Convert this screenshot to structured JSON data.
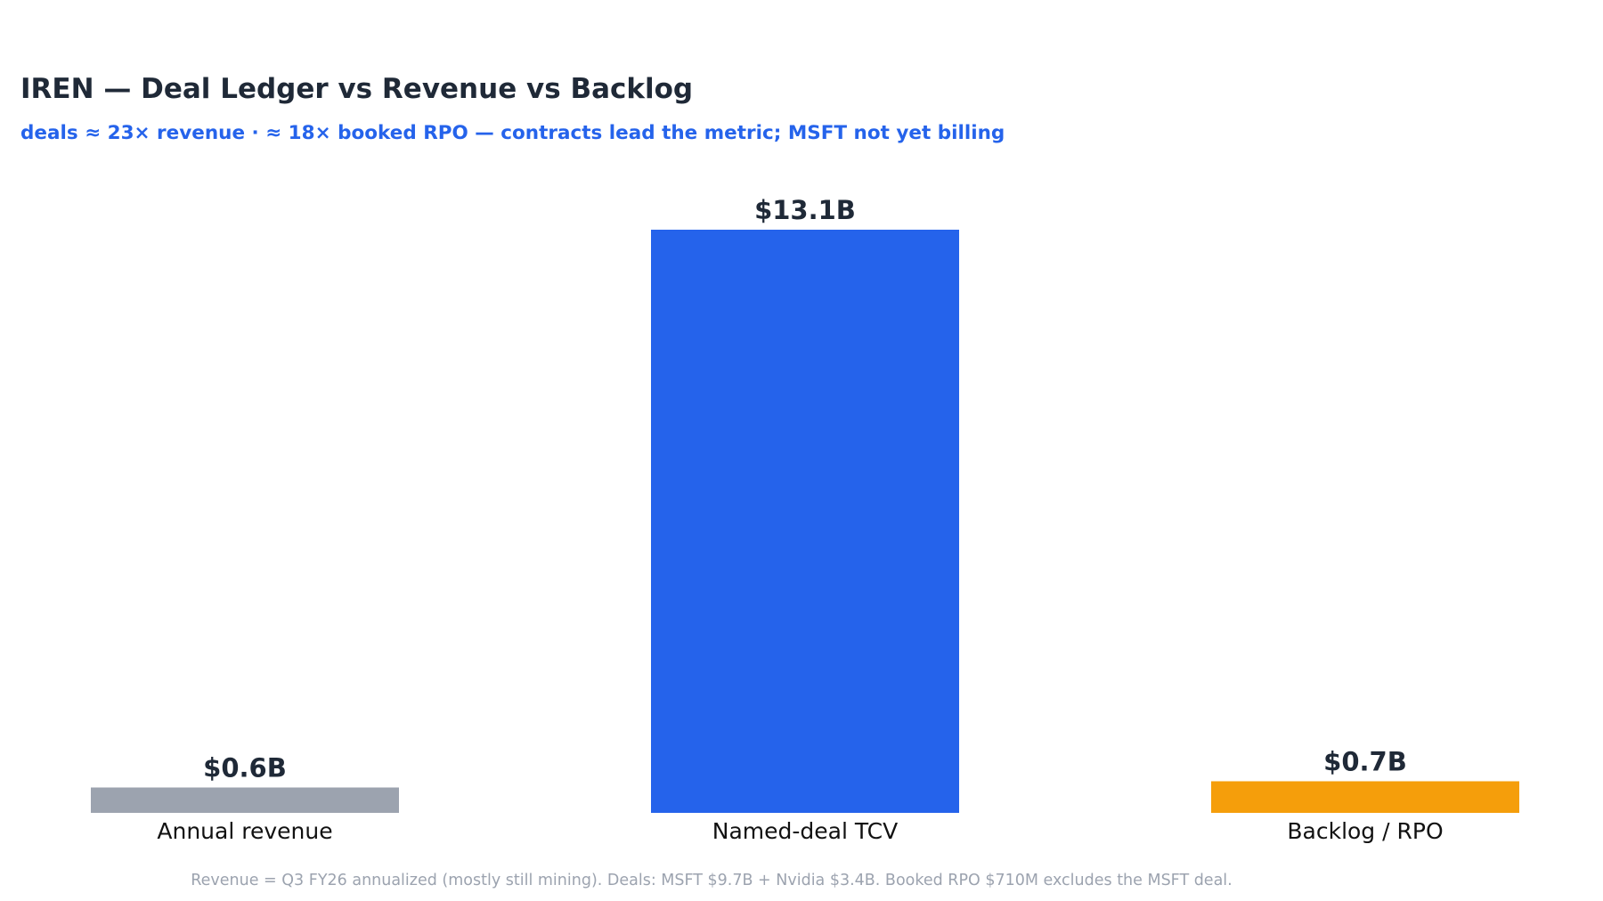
{
  "chart_data": {
    "type": "bar",
    "title": "IREN — Deal Ledger vs Revenue vs Backlog",
    "subtitle": "deals ≈ 23× revenue · ≈ 18× booked RPO — contracts lead the metric; MSFT not yet billing",
    "categories": [
      "Annual revenue",
      "Named-deal TCV",
      "Backlog / RPO"
    ],
    "values": [
      0.57,
      13.1,
      0.71
    ],
    "value_labels": [
      "$0.6B",
      "$13.1B",
      "$0.7B"
    ],
    "unit": "$B",
    "ylim": [
      0,
      13.1
    ],
    "grid": false,
    "colors": [
      "#9ca3af",
      "#2563eb",
      "#f59e0b"
    ],
    "footnote": "Revenue = Q3 FY26 annualized (mostly still mining). Deals: MSFT $9.7B + Nvidia $3.4B. Booked RPO $710M excludes the MSFT deal."
  },
  "theme": {
    "subtitle_color": "#2563eb"
  }
}
